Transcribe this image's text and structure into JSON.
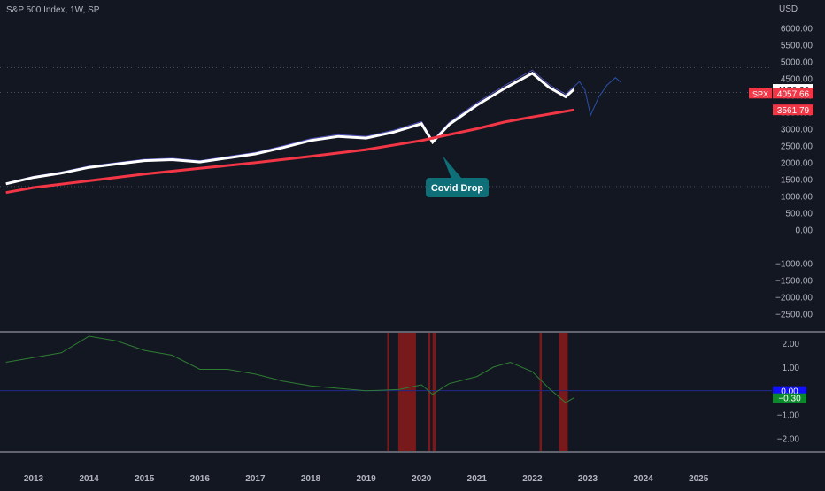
{
  "header": {
    "title": "S&P 500 Index, 1W, SP"
  },
  "colors": {
    "background": "#131722",
    "axis_text": "#b2b5be",
    "price_line": "#ffffff",
    "long_ma": "#f23645",
    "candles": "#5b5ce0",
    "osc_line": "#2e7d32",
    "osc_zero": "#1f2a8a",
    "highlight": "#8b1a1a",
    "callout": "#0e6f79",
    "badge_blue": "#1010ff",
    "badge_green": "#0b8a2a"
  },
  "annotation": {
    "label": "Covid Drop"
  },
  "chart_data": [
    {
      "type": "line",
      "title": "S&P 500 Index, 1W, SP",
      "currency": "USD",
      "ylim": [
        -2750,
        6250
      ],
      "y_ticks": [
        6000,
        5500,
        5000,
        4500,
        4000,
        3500,
        3000,
        2500,
        2000,
        1500,
        1000,
        500,
        0,
        -500,
        -1000,
        -1500,
        -2000,
        -2500
      ],
      "y_tick_labels": [
        "6000.00",
        "5500.00",
        "5000.00",
        "4500.00",
        "4000.00",
        "3500.00",
        "3000.00",
        "2500.00",
        "2000.00",
        "1500.00",
        "1000.00",
        "500.00",
        "0.00",
        "−1000.00",
        "−1500.00",
        "−2000.00",
        "−2500.00"
      ],
      "y_tick_label_values": [
        6000,
        5500,
        5000,
        4500,
        4000,
        3500,
        3000,
        2500,
        2000,
        1500,
        1000,
        500,
        0,
        -1000,
        -1500,
        -2000,
        -2500
      ],
      "hlines": [
        4820,
        4080,
        1280
      ],
      "series": [
        {
          "role": "price",
          "x": [
            2012.5,
            2013,
            2013.5,
            2014,
            2014.5,
            2015,
            2015.5,
            2016,
            2016.5,
            2017,
            2017.5,
            2018,
            2018.5,
            2019,
            2019.5,
            2020,
            2020.2,
            2020.5,
            2021,
            2021.5,
            2022,
            2022.3,
            2022.6,
            2022.75
          ],
          "y": [
            1360,
            1550,
            1680,
            1850,
            1950,
            2050,
            2080,
            2010,
            2130,
            2250,
            2440,
            2650,
            2770,
            2720,
            2900,
            3150,
            2600,
            3130,
            3700,
            4200,
            4650,
            4230,
            3950,
            4170
          ]
        },
        {
          "role": "long_ma",
          "x": [
            2012.5,
            2013,
            2014,
            2015,
            2016,
            2017,
            2018,
            2019,
            2020,
            2021,
            2021.5,
            2022,
            2022.75
          ],
          "y": [
            1100,
            1250,
            1450,
            1650,
            1820,
            1990,
            2180,
            2380,
            2650,
            3000,
            3200,
            3350,
            3560
          ]
        },
        {
          "role": "projection",
          "x": [
            2022.75,
            2022.85,
            2022.95,
            2023.05,
            2023.2,
            2023.35,
            2023.5,
            2023.6
          ],
          "y": [
            4250,
            4400,
            4150,
            3400,
            3950,
            4300,
            4520,
            4380
          ]
        }
      ],
      "labels": [
        {
          "text": "4170.26",
          "value": 4170.26,
          "style": "white"
        },
        {
          "text": "SPX",
          "value": 4057.66,
          "style": "red"
        },
        {
          "text": "4057.66",
          "value": 4057.66,
          "style": "red"
        },
        {
          "text": "3561.79",
          "value": 3561.79,
          "style": "red"
        }
      ],
      "annotations": [
        {
          "text": "Covid Drop",
          "x": 2020.2,
          "y": 2150
        }
      ]
    },
    {
      "type": "line",
      "ylim": [
        -2.55,
        2.45
      ],
      "y_ticks": [
        2,
        1,
        -1,
        -2
      ],
      "y_tick_labels": [
        "2.00",
        "1.00",
        "−1.00",
        "−2.00"
      ],
      "series": [
        {
          "role": "oscillator",
          "x": [
            2012.5,
            2013.5,
            2014,
            2014.5,
            2015,
            2015.5,
            2016,
            2016.5,
            2017,
            2017.5,
            2018,
            2018.5,
            2019,
            2019.3,
            2019.6,
            2020,
            2020.2,
            2020.5,
            2021,
            2021.3,
            2021.6,
            2022,
            2022.3,
            2022.6,
            2022.75
          ],
          "y": [
            1.2,
            1.6,
            2.3,
            2.1,
            1.7,
            1.5,
            0.9,
            0.9,
            0.7,
            0.4,
            0.2,
            0.1,
            0.0,
            0.02,
            0.05,
            0.25,
            -0.15,
            0.3,
            0.6,
            1.0,
            1.2,
            0.8,
            0.1,
            -0.5,
            -0.3
          ]
        }
      ],
      "zero_line": 0,
      "highlight_ranges": [
        [
          2019.38,
          2019.42
        ],
        [
          2019.58,
          2019.9
        ],
        [
          2020.12,
          2020.16
        ],
        [
          2020.2,
          2020.26
        ],
        [
          2022.13,
          2022.17
        ],
        [
          2022.48,
          2022.64
        ]
      ],
      "labels": [
        {
          "text": "0.00",
          "value": 0,
          "style": "blue"
        },
        {
          "text": "−0.30",
          "value": -0.3,
          "style": "green"
        }
      ]
    }
  ],
  "x_axis": {
    "years": [
      2013,
      2014,
      2015,
      2016,
      2017,
      2018,
      2019,
      2020,
      2021,
      2022,
      2023,
      2024,
      2025
    ],
    "labels": [
      "2013",
      "2014",
      "2015",
      "2016",
      "2017",
      "2018",
      "2019",
      "2020",
      "2021",
      "2022",
      "2023",
      "2024",
      "2025"
    ]
  }
}
